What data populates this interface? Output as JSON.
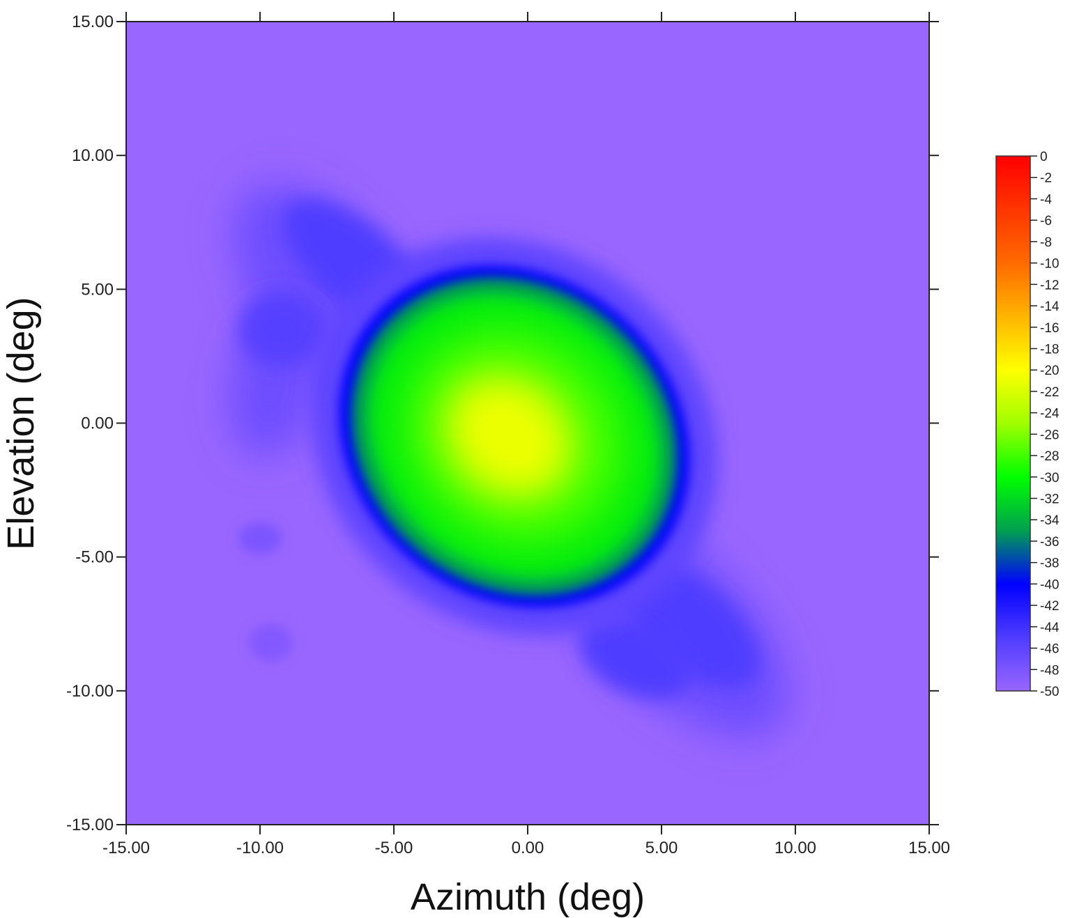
{
  "chart_data": {
    "type": "heatmap",
    "title": "",
    "xlabel": "Azimuth (deg)",
    "ylabel": "Elevation (deg)",
    "xlim": [
      -15,
      15
    ],
    "ylim": [
      -15,
      15
    ],
    "x_ticks": [
      "-15.00",
      "-10.00",
      "-5.00",
      "0.00",
      "5.00",
      "10.00",
      "15.00"
    ],
    "y_ticks": [
      "15.00",
      "10.00",
      "5.00",
      "0.00",
      "-5.00",
      "-10.00",
      "-15.00"
    ],
    "x_tick_values": [
      -15,
      -10,
      -5,
      0,
      5,
      10,
      15
    ],
    "y_tick_values": [
      15,
      10,
      5,
      0,
      -5,
      -10,
      -15
    ],
    "background_value": -50,
    "colorbar": {
      "range": [
        -50,
        0
      ],
      "labels": [
        "0",
        "-2",
        "-4",
        "-6",
        "-8",
        "-10",
        "-12",
        "-14",
        "-16",
        "-18",
        "-20",
        "-22",
        "-24",
        "-26",
        "-28",
        "-30",
        "-32",
        "-34",
        "-36",
        "-38",
        "-40",
        "-42",
        "-44",
        "-46",
        "-48",
        "-50"
      ],
      "stops": [
        {
          "value": 0,
          "color": "#ff0000"
        },
        {
          "value": -10,
          "color": "#ff6a00"
        },
        {
          "value": -20,
          "color": "#ffff00"
        },
        {
          "value": -25,
          "color": "#a0ff00"
        },
        {
          "value": -30,
          "color": "#00ff00"
        },
        {
          "value": -35,
          "color": "#00a050"
        },
        {
          "value": -40,
          "color": "#0000ff"
        },
        {
          "value": -45,
          "color": "#4f3cff"
        },
        {
          "value": -50,
          "color": "#9966ff"
        }
      ]
    },
    "features": [
      {
        "name": "main lobe",
        "peak_value": -23,
        "center": [
          -0.5,
          -0.5
        ]
      },
      {
        "name": "upper-left sidelobe",
        "peak_value": -45,
        "center": [
          -6.5,
          6
        ]
      },
      {
        "name": "lower-right sidelobe",
        "peak_value": -45,
        "center": [
          6,
          -7.5
        ]
      }
    ]
  }
}
